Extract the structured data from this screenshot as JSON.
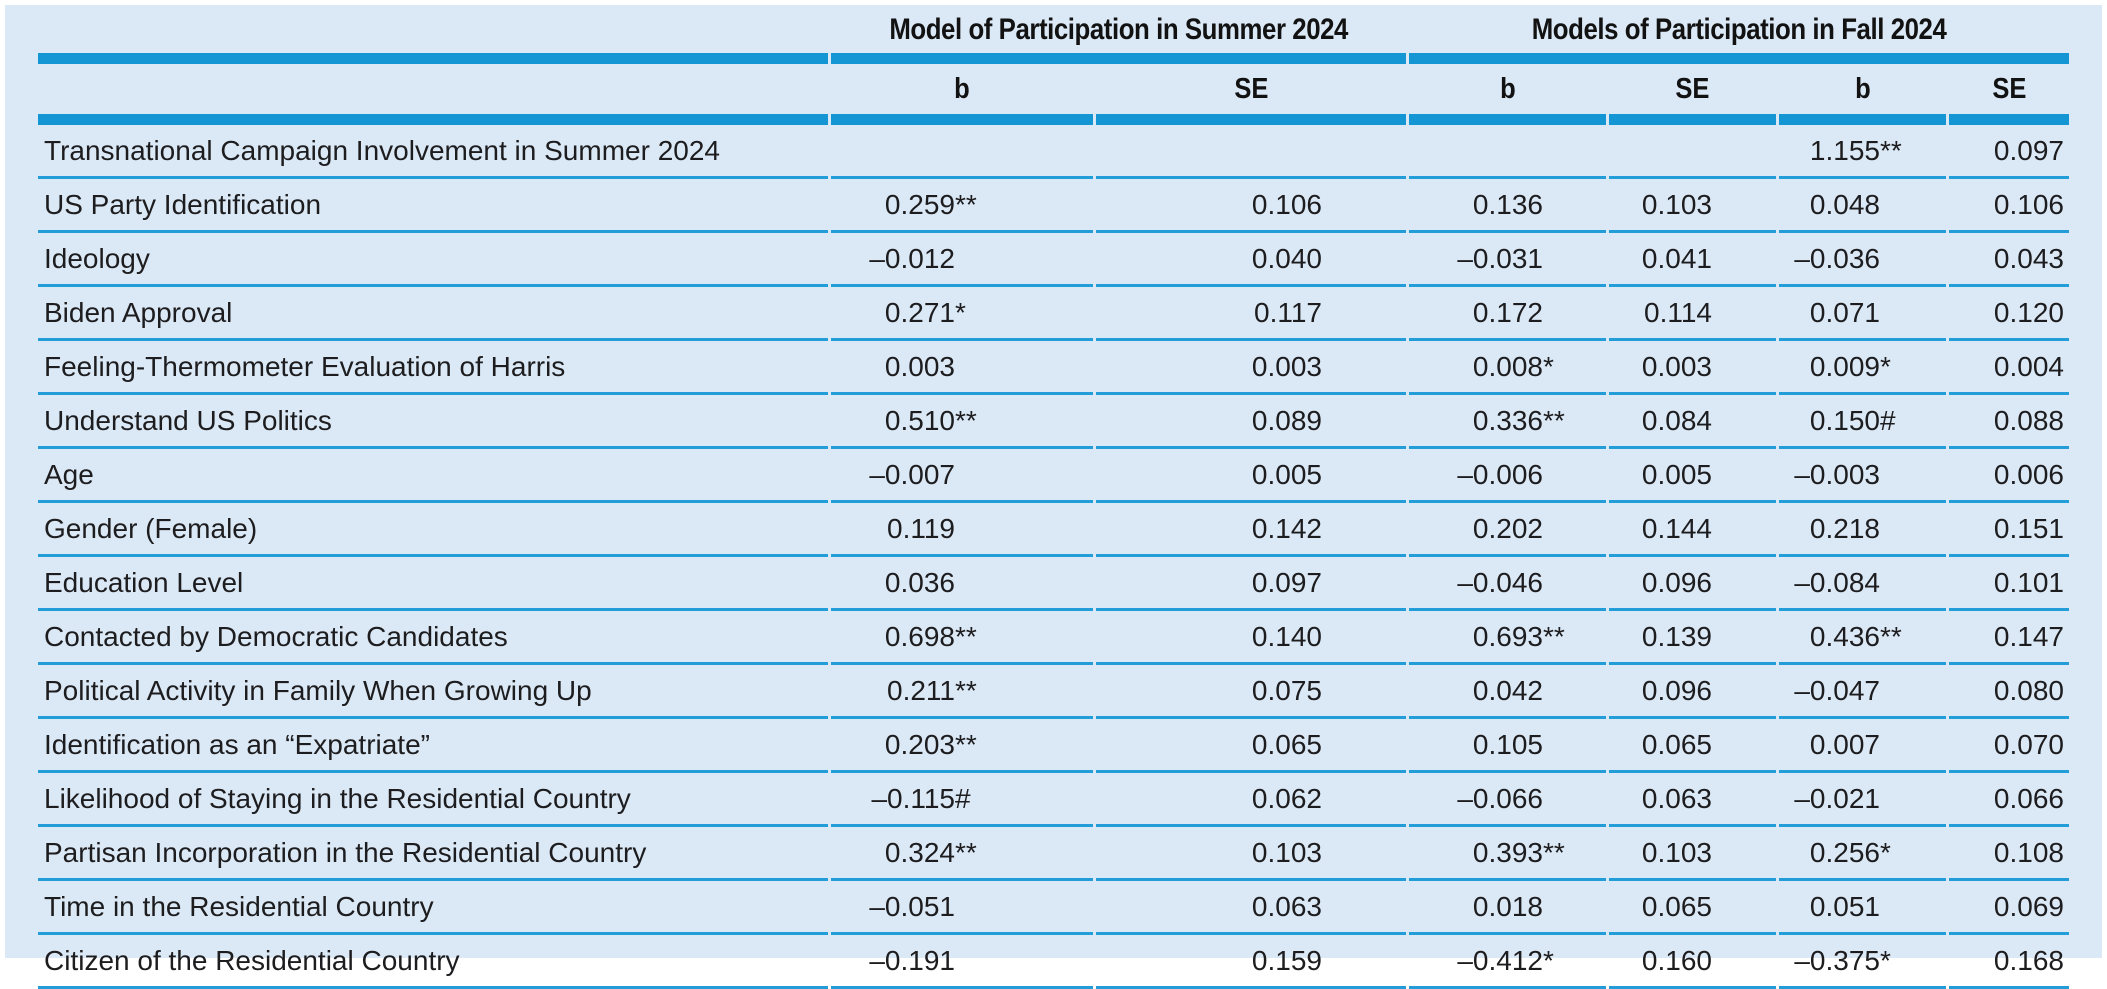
{
  "page": {
    "background_color": "#dbe8f5",
    "rule_color_thick": "#1396d3",
    "rule_color_thin": "#229dd8"
  },
  "table": {
    "group_headers": [
      {
        "label": "Model of Participation in Summer 2024",
        "span": 2
      },
      {
        "label": "Models of Participation in Fall 2024",
        "span": 4
      }
    ],
    "column_headers": [
      "b",
      "SE",
      "b",
      "SE",
      "b",
      "SE"
    ],
    "rows": [
      {
        "label": "Transnational Campaign Involvement in Summer 2024",
        "values": [
          "",
          "",
          "",
          "",
          "1.155**",
          "0.097"
        ]
      },
      {
        "label": "US Party Identification",
        "values": [
          "0.259**",
          "0.106",
          "0.136",
          "0.103",
          "0.048",
          "0.106"
        ]
      },
      {
        "label": "Ideology",
        "values": [
          "–0.012",
          "0.040",
          "–0.031",
          "0.041",
          "–0.036",
          "0.043"
        ]
      },
      {
        "label": "Biden Approval",
        "values": [
          "0.271*",
          "0.117",
          "0.172",
          "0.114",
          "0.071",
          "0.120"
        ]
      },
      {
        "label": "Feeling-Thermometer Evaluation of Harris",
        "values": [
          "0.003",
          "0.003",
          "0.008*",
          "0.003",
          "0.009*",
          "0.004"
        ]
      },
      {
        "label": "Understand US Politics",
        "values": [
          "0.510**",
          "0.089",
          "0.336**",
          "0.084",
          "0.150#",
          "0.088"
        ]
      },
      {
        "label": "Age",
        "values": [
          "–0.007",
          "0.005",
          "–0.006",
          "0.005",
          "–0.003",
          "0.006"
        ]
      },
      {
        "label": "Gender (Female)",
        "values": [
          "0.119",
          "0.142",
          "0.202",
          "0.144",
          "0.218",
          "0.151"
        ]
      },
      {
        "label": "Education Level",
        "values": [
          "0.036",
          "0.097",
          "–0.046",
          "0.096",
          "–0.084",
          "0.101"
        ]
      },
      {
        "label": "Contacted by Democratic Candidates",
        "values": [
          "0.698**",
          "0.140",
          "0.693**",
          "0.139",
          "0.436**",
          "0.147"
        ]
      },
      {
        "label": "Political Activity in Family When Growing Up",
        "values": [
          "0.211**",
          "0.075",
          "0.042",
          "0.096",
          "–0.047",
          "0.080"
        ]
      },
      {
        "label": "Identification as an “Expatriate”",
        "values": [
          "0.203**",
          "0.065",
          "0.105",
          "0.065",
          "0.007",
          "0.070"
        ]
      },
      {
        "label": "Likelihood of Staying in the Residential Country",
        "values": [
          "–0.115#",
          "0.062",
          "–0.066",
          "0.063",
          "–0.021",
          "0.066"
        ]
      },
      {
        "label": "Partisan Incorporation in the Residential Country",
        "values": [
          "0.324**",
          "0.103",
          "0.393**",
          "0.103",
          "0.256*",
          "0.108"
        ]
      },
      {
        "label": "Time in the Residential Country",
        "values": [
          "–0.051",
          "0.063",
          "0.018",
          "0.065",
          "0.051",
          "0.069"
        ]
      },
      {
        "label": "Citizen of the Residential Country",
        "values": [
          "–0.191",
          "0.159",
          "–0.412*",
          "0.160",
          "–0.375*",
          "0.168"
        ]
      }
    ]
  }
}
